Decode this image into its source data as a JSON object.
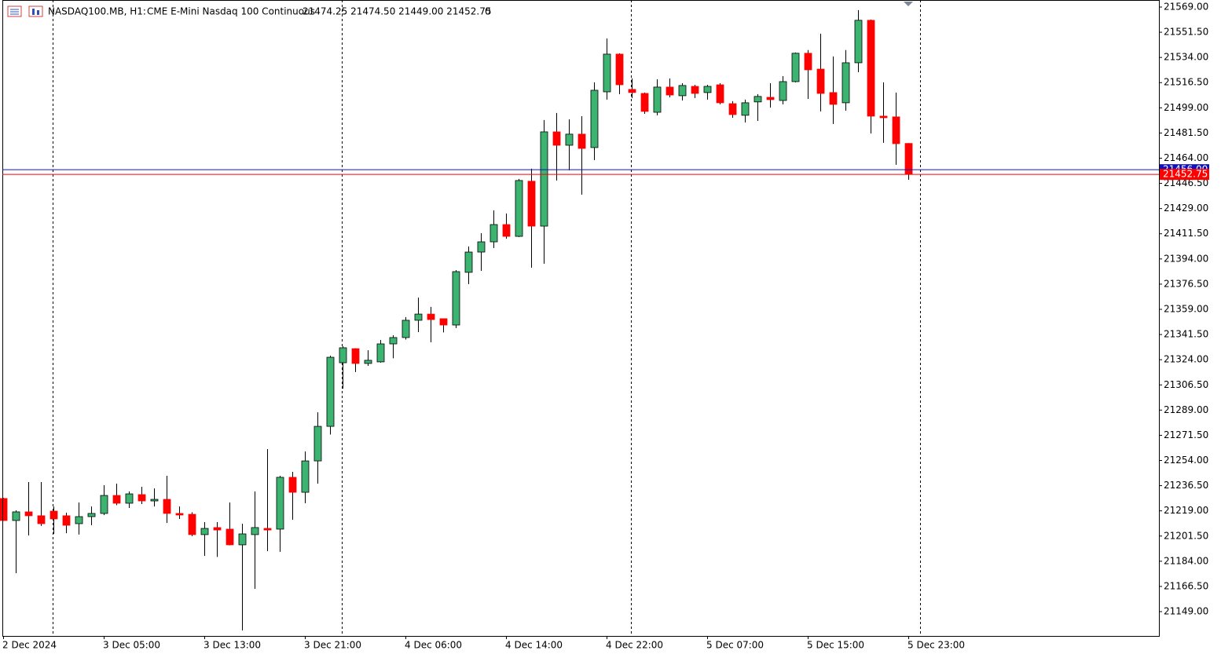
{
  "chart_data": {
    "type": "candlestick",
    "header": [
      "NASDAQ100.MB, H1:",
      "CME E-Mini Nasdaq 100 Continuous",
      "21474.25 21474.50 21449.00 21452.75",
      "0"
    ],
    "categories": [
      "2 Dec 2024",
      null,
      null,
      null,
      null,
      null,
      null,
      null,
      "3 Dec 05:00",
      null,
      null,
      null,
      null,
      null,
      null,
      null,
      "3 Dec 13:00",
      null,
      null,
      null,
      null,
      null,
      null,
      null,
      "3 Dec 21:00",
      null,
      null,
      null,
      null,
      null,
      null,
      null,
      "4 Dec 06:00",
      null,
      null,
      null,
      null,
      null,
      null,
      null,
      "4 Dec 14:00",
      null,
      null,
      null,
      null,
      null,
      null,
      null,
      "4 Dec 22:00",
      null,
      null,
      null,
      null,
      null,
      null,
      null,
      "5 Dec 07:00",
      null,
      null,
      null,
      null,
      null,
      null,
      null,
      "5 Dec 15:00",
      null,
      null,
      null,
      null,
      null,
      null,
      null,
      "5 Dec 23:00"
    ],
    "series": [
      {
        "up_color": "#3cb371",
        "down_color": "#ff0000",
        "open": [
          21227.6,
          21212.3,
          21218.3,
          21215.6,
          21218.8,
          21215.6,
          21210.1,
          21215.0,
          21217.2,
          21229.7,
          21224.3,
          21230.3,
          21225.9,
          21227.0,
          21217.2,
          21216.6,
          21202.5,
          21207.4,
          21206.3,
          21195.4,
          21202.5,
          21206.8,
          21206.3,
          21242.3,
          21231.9,
          21253.7,
          21277.7,
          21321.9,
          21331.7,
          21321.4,
          21322.5,
          21335.0,
          21339.4,
          21351.4,
          21355.7,
          21352.5,
          21348.1,
          21384.7,
          21398.8,
          21405.9,
          21417.9,
          21409.7,
          21448.0,
          21416.8,
          21482.3,
          21473.0,
          21480.7,
          21471.4,
          21510.1,
          21536.3,
          21511.8,
          21509.0,
          21495.9,
          21513.4,
          21507.4,
          21513.9,
          21509.6,
          21515.0,
          21501.9,
          21493.8,
          21503.1,
          21506.3,
          21504.1,
          21517.2,
          21536.9,
          21525.9,
          21509.6,
          21502.5,
          21530.3,
          21559.8,
          21493.2,
          21492.7,
          21474.25
        ],
        "high": [
          21228.0,
          21219.4,
          21239.0,
          21239.0,
          21222.0,
          21217.7,
          21224.8,
          21222.0,
          21236.8,
          21237.9,
          21232.5,
          21235.7,
          21234.6,
          21243.4,
          21222.0,
          21218.0,
          21211.2,
          21211.2,
          21224.8,
          21210.0,
          21232.5,
          21261.9,
          21243.4,
          21246.1,
          21260.3,
          21287.5,
          21326.8,
          21333.4,
          21332.0,
          21330.6,
          21337.7,
          21341.0,
          21353.6,
          21367.2,
          21360.7,
          21352.5,
          21386.3,
          21402.7,
          21411.9,
          21427.8,
          21425.6,
          21449.6,
          21456.7,
          21490.5,
          21495.4,
          21491.0,
          21493.2,
          21516.7,
          21547.2,
          21536.9,
          21519.4,
          21509.6,
          21518.8,
          21519.4,
          21516.1,
          21515.0,
          21515.0,
          21516.1,
          21503.6,
          21504.7,
          21508.5,
          21516.1,
          21521.0,
          21537.4,
          21539.1,
          21550.5,
          21534.7,
          21539.1,
          21566.9,
          21560.3,
          21516.7,
          21509.6,
          21474.5
        ],
        "low": [
          21212.0,
          21175.7,
          21201.9,
          21208.5,
          21203.0,
          21203.5,
          21202.5,
          21209.0,
          21216.0,
          21223.0,
          21221.0,
          21223.7,
          21222.0,
          21210.6,
          21213.4,
          21201.4,
          21187.7,
          21187.0,
          21195.0,
          21135.9,
          21164.8,
          21191.0,
          21190.5,
          21212.8,
          21224.3,
          21237.9,
          21272.0,
          21303.9,
          21315.4,
          21319.7,
          21322.0,
          21325.0,
          21338.0,
          21343.2,
          21336.1,
          21343.0,
          21346.0,
          21376.5,
          21385.7,
          21401.6,
          21408.0,
          21409.2,
          21387.9,
          21390.7,
          21448.5,
          21455.6,
          21438.7,
          21462.7,
          21504.7,
          21508.5,
          21505.8,
          21494.8,
          21493.8,
          21506.3,
          21504.1,
          21505.8,
          21504.7,
          21501.4,
          21492.1,
          21488.8,
          21489.9,
          21499.2,
          21501.4,
          21516.7,
          21505.2,
          21496.5,
          21487.8,
          21497.0,
          21523.8,
          21481.2,
          21474.7,
          21459.4,
          21449.0
        ],
        "close": [
          21212.3,
          21218.3,
          21215.6,
          21210.1,
          21213.4,
          21209.0,
          21215.0,
          21217.2,
          21229.7,
          21224.3,
          21230.8,
          21225.9,
          21227.0,
          21217.2,
          21216.1,
          21202.5,
          21206.8,
          21205.7,
          21195.4,
          21203.0,
          21207.4,
          21205.7,
          21242.3,
          21231.9,
          21253.7,
          21277.7,
          21325.7,
          21332.3,
          21321.4,
          21323.6,
          21335.0,
          21339.4,
          21351.4,
          21355.7,
          21351.9,
          21348.1,
          21385.2,
          21398.8,
          21405.9,
          21417.9,
          21409.7,
          21448.5,
          21416.8,
          21482.3,
          21473.0,
          21480.7,
          21470.8,
          21511.2,
          21536.3,
          21515.0,
          21509.6,
          21496.5,
          21513.4,
          21507.9,
          21514.5,
          21509.0,
          21513.9,
          21502.5,
          21494.3,
          21502.5,
          21506.9,
          21504.7,
          21517.2,
          21536.9,
          21525.4,
          21509.0,
          21501.4,
          21530.3,
          21559.8,
          21493.2,
          21492.1,
          21474.1,
          21452.75
        ]
      }
    ],
    "price_lines": [
      {
        "value": 21456.0,
        "label": "21456.00",
        "color": "#1010c0"
      },
      {
        "value": 21452.75,
        "label": "21452.75",
        "color": "#ff0000"
      }
    ],
    "ylim": [
      21132.1,
      21573.9
    ],
    "yticks": [
      {
        "value": 21149,
        "label": "21149.00"
      },
      {
        "value": 21166.5,
        "label": "21166.50"
      },
      {
        "value": 21184,
        "label": "21184.00"
      },
      {
        "value": 21201.5,
        "label": "21201.50"
      },
      {
        "value": 21219,
        "label": "21219.00"
      },
      {
        "value": 21236.5,
        "label": "21236.50"
      },
      {
        "value": 21254,
        "label": "21254.00"
      },
      {
        "value": 21271.5,
        "label": "21271.50"
      },
      {
        "value": 21289,
        "label": "21289.00"
      },
      {
        "value": 21306.5,
        "label": "21306.50"
      },
      {
        "value": 21324,
        "label": "21324.00"
      },
      {
        "value": 21341.5,
        "label": "21341.50"
      },
      {
        "value": 21359,
        "label": "21359.00"
      },
      {
        "value": 21376.5,
        "label": "21376.50"
      },
      {
        "value": 21394,
        "label": "21394.00"
      },
      {
        "value": 21411.5,
        "label": "21411.50"
      },
      {
        "value": 21429,
        "label": "21429.00"
      },
      {
        "value": 21446.5,
        "label": "21446.50"
      },
      {
        "value": 21464,
        "label": "21464.00"
      },
      {
        "value": 21481.5,
        "label": "21481.50"
      },
      {
        "value": 21499,
        "label": "21499.00"
      },
      {
        "value": 21516.5,
        "label": "21516.50"
      },
      {
        "value": 21534,
        "label": "21534.00"
      },
      {
        "value": 21551.5,
        "label": "21551.50"
      },
      {
        "value": 21569,
        "label": "21569.00"
      }
    ]
  }
}
